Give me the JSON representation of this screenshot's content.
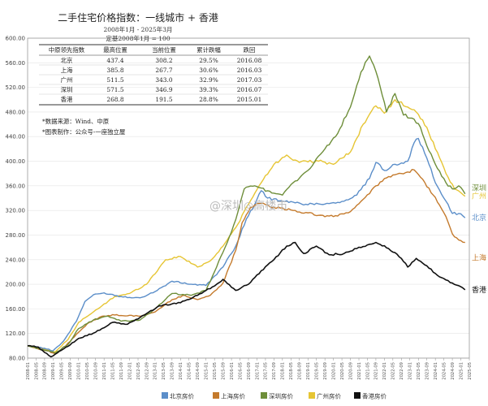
{
  "chart_data": {
    "type": "line",
    "title": "二手住宅价格指数：一线城市 + 香港",
    "subtitle_lines": [
      "2008年1月 - 2025年3月",
      "定基2008年1月 = 100"
    ],
    "ylim": [
      80,
      600
    ],
    "yticks": [
      "80.00",
      "120.00",
      "160.00",
      "200.00",
      "240.00",
      "280.00",
      "320.00",
      "360.00",
      "400.00",
      "440.00",
      "480.00",
      "520.00",
      "560.00",
      "600.00"
    ],
    "x_tick_labels": [
      "2008-01",
      "2008-05",
      "2008-09",
      "2009-01",
      "2009-05",
      "2009-09",
      "2010-01",
      "2010-05",
      "2010-09",
      "2011-01",
      "2011-05",
      "2011-09",
      "2012-01",
      "2012-05",
      "2012-09",
      "2013-01",
      "2013-05",
      "2013-09",
      "2014-01",
      "2014-05",
      "2014-09",
      "2015-01",
      "2015-05",
      "2015-09",
      "2016-01",
      "2016-05",
      "2016-09",
      "2017-01",
      "2017-05",
      "2017-09",
      "2018-01",
      "2018-05",
      "2018-09",
      "2019-01",
      "2019-05",
      "2019-09",
      "2020-01",
      "2020-05",
      "2020-09",
      "2021-01",
      "2021-05",
      "2021-09",
      "2022-01",
      "2022-05",
      "2022-09",
      "2023-01",
      "2023-05",
      "2023-09",
      "2024-01",
      "2024-05",
      "2024-09",
      "2025-01",
      "2025-05"
    ],
    "x_start": "2008-01",
    "x_end": "2025-03",
    "series": [
      {
        "name": "北京房价",
        "end_label": "北京",
        "color": "#5b8ec9",
        "points": [
          [
            "2008-01",
            100
          ],
          [
            "2008-09",
            96
          ],
          [
            "2009-01",
            92
          ],
          [
            "2009-06",
            108
          ],
          [
            "2009-12",
            140
          ],
          [
            "2010-04",
            172
          ],
          [
            "2010-08",
            183
          ],
          [
            "2011-01",
            186
          ],
          [
            "2011-09",
            180
          ],
          [
            "2012-06",
            178
          ],
          [
            "2013-01",
            188
          ],
          [
            "2013-09",
            205
          ],
          [
            "2014-06",
            200
          ],
          [
            "2015-01",
            198
          ],
          [
            "2015-09",
            228
          ],
          [
            "2016-03",
            262
          ],
          [
            "2016-08",
            306
          ],
          [
            "2016-12",
            330
          ],
          [
            "2017-03",
            352
          ],
          [
            "2017-06",
            340
          ],
          [
            "2018-01",
            335
          ],
          [
            "2018-12",
            330
          ],
          [
            "2019-12",
            332
          ],
          [
            "2020-06",
            335
          ],
          [
            "2020-12",
            345
          ],
          [
            "2021-06",
            372
          ],
          [
            "2021-09",
            398
          ],
          [
            "2022-01",
            385
          ],
          [
            "2022-06",
            395
          ],
          [
            "2022-12",
            400
          ],
          [
            "2023-03",
            430
          ],
          [
            "2023-05",
            437
          ],
          [
            "2023-09",
            405
          ],
          [
            "2024-01",
            365
          ],
          [
            "2024-06",
            335
          ],
          [
            "2024-09",
            315
          ],
          [
            "2024-12",
            315
          ],
          [
            "2025-03",
            308
          ]
        ]
      },
      {
        "name": "上海房价",
        "end_label": "上海",
        "color": "#c47a2c",
        "points": [
          [
            "2008-01",
            100
          ],
          [
            "2008-10",
            92
          ],
          [
            "2009-02",
            87
          ],
          [
            "2009-07",
            100
          ],
          [
            "2010-01",
            122
          ],
          [
            "2010-06",
            138
          ],
          [
            "2010-12",
            148
          ],
          [
            "2011-06",
            150
          ],
          [
            "2012-06",
            148
          ],
          [
            "2013-01",
            155
          ],
          [
            "2013-09",
            175
          ],
          [
            "2014-03",
            182
          ],
          [
            "2014-09",
            175
          ],
          [
            "2015-03",
            182
          ],
          [
            "2015-09",
            202
          ],
          [
            "2016-03",
            255
          ],
          [
            "2016-06",
            300
          ],
          [
            "2016-10",
            325
          ],
          [
            "2017-03",
            332
          ],
          [
            "2017-09",
            325
          ],
          [
            "2018-06",
            320
          ],
          [
            "2019-06",
            312
          ],
          [
            "2020-01",
            310
          ],
          [
            "2020-09",
            318
          ],
          [
            "2021-03",
            338
          ],
          [
            "2021-09",
            360
          ],
          [
            "2022-03",
            375
          ],
          [
            "2022-09",
            380
          ],
          [
            "2023-03",
            386
          ],
          [
            "2023-06",
            374
          ],
          [
            "2023-12",
            345
          ],
          [
            "2024-06",
            310
          ],
          [
            "2024-09",
            282
          ],
          [
            "2024-12",
            272
          ],
          [
            "2025-03",
            268
          ]
        ]
      },
      {
        "name": "深圳房价",
        "end_label": "深圳",
        "color": "#6e8e3a",
        "points": [
          [
            "2008-01",
            100
          ],
          [
            "2008-09",
            93
          ],
          [
            "2009-02",
            88
          ],
          [
            "2009-08",
            102
          ],
          [
            "2010-01",
            128
          ],
          [
            "2010-08",
            142
          ],
          [
            "2011-03",
            148
          ],
          [
            "2011-09",
            140
          ],
          [
            "2012-06",
            142
          ],
          [
            "2013-01",
            160
          ],
          [
            "2013-09",
            185
          ],
          [
            "2014-06",
            182
          ],
          [
            "2015-01",
            190
          ],
          [
            "2015-06",
            228
          ],
          [
            "2015-10",
            260
          ],
          [
            "2016-03",
            305
          ],
          [
            "2016-07",
            355
          ],
          [
            "2016-12",
            360
          ],
          [
            "2017-06",
            352
          ],
          [
            "2018-01",
            345
          ],
          [
            "2018-06",
            365
          ],
          [
            "2019-01",
            385
          ],
          [
            "2019-09",
            420
          ],
          [
            "2020-03",
            445
          ],
          [
            "2020-09",
            488
          ],
          [
            "2021-02",
            545
          ],
          [
            "2021-06",
            571
          ],
          [
            "2021-10",
            535
          ],
          [
            "2022-02",
            480
          ],
          [
            "2022-06",
            510
          ],
          [
            "2022-10",
            475
          ],
          [
            "2023-02",
            470
          ],
          [
            "2023-06",
            455
          ],
          [
            "2023-09",
            425
          ],
          [
            "2024-01",
            395
          ],
          [
            "2024-06",
            365
          ],
          [
            "2024-09",
            355
          ],
          [
            "2024-12",
            360
          ],
          [
            "2025-03",
            347
          ]
        ]
      },
      {
        "name": "广州房价",
        "end_label": "广州",
        "color": "#e6c534",
        "points": [
          [
            "2008-01",
            100
          ],
          [
            "2008-09",
            95
          ],
          [
            "2009-02",
            90
          ],
          [
            "2009-08",
            110
          ],
          [
            "2010-01",
            138
          ],
          [
            "2010-06",
            150
          ],
          [
            "2010-12",
            165
          ],
          [
            "2011-06",
            180
          ],
          [
            "2012-01",
            185
          ],
          [
            "2012-09",
            200
          ],
          [
            "2013-06",
            240
          ],
          [
            "2014-01",
            245
          ],
          [
            "2014-09",
            228
          ],
          [
            "2015-03",
            238
          ],
          [
            "2015-09",
            262
          ],
          [
            "2016-03",
            292
          ],
          [
            "2016-09",
            330
          ],
          [
            "2017-03",
            365
          ],
          [
            "2017-09",
            395
          ],
          [
            "2018-03",
            410
          ],
          [
            "2018-09",
            398
          ],
          [
            "2019-06",
            400
          ],
          [
            "2020-01",
            395
          ],
          [
            "2020-09",
            415
          ],
          [
            "2021-03",
            460
          ],
          [
            "2021-09",
            490
          ],
          [
            "2022-01",
            478
          ],
          [
            "2022-06",
            500
          ],
          [
            "2022-12",
            488
          ],
          [
            "2023-04",
            480
          ],
          [
            "2023-09",
            455
          ],
          [
            "2024-01",
            420
          ],
          [
            "2024-06",
            380
          ],
          [
            "2024-10",
            355
          ],
          [
            "2025-03",
            343
          ]
        ]
      },
      {
        "name": "香港房价",
        "end_label": "香港",
        "color": "#111111",
        "points": [
          [
            "2008-01",
            100
          ],
          [
            "2008-06",
            98
          ],
          [
            "2008-12",
            82
          ],
          [
            "2009-06",
            95
          ],
          [
            "2010-01",
            112
          ],
          [
            "2010-09",
            122
          ],
          [
            "2011-05",
            138
          ],
          [
            "2011-12",
            135
          ],
          [
            "2012-08",
            150
          ],
          [
            "2013-03",
            165
          ],
          [
            "2014-01",
            170
          ],
          [
            "2014-09",
            182
          ],
          [
            "2015-06",
            200
          ],
          [
            "2015-09",
            208
          ],
          [
            "2016-03",
            190
          ],
          [
            "2016-09",
            200
          ],
          [
            "2017-03",
            222
          ],
          [
            "2017-09",
            240
          ],
          [
            "2018-03",
            262
          ],
          [
            "2018-07",
            268
          ],
          [
            "2018-11",
            250
          ],
          [
            "2019-05",
            262
          ],
          [
            "2019-11",
            248
          ],
          [
            "2020-06",
            250
          ],
          [
            "2020-12",
            258
          ],
          [
            "2021-06",
            265
          ],
          [
            "2021-09",
            268
          ],
          [
            "2022-03",
            258
          ],
          [
            "2022-09",
            242
          ],
          [
            "2022-12",
            228
          ],
          [
            "2023-04",
            242
          ],
          [
            "2023-09",
            230
          ],
          [
            "2024-03",
            212
          ],
          [
            "2024-09",
            202
          ],
          [
            "2025-01",
            196
          ],
          [
            "2025-03",
            191
          ]
        ]
      }
    ],
    "legend": {
      "placement": "bottom-center"
    }
  },
  "summary_table": {
    "headers": [
      "中原领先指数",
      "最高位置",
      "当前位置",
      "累计跌幅",
      "跌回"
    ],
    "rows": [
      [
        "北京",
        "437.4",
        "308.2",
        "29.5%",
        "2016.08"
      ],
      [
        "上海",
        "385.8",
        "267.7",
        "30.6%",
        "2016.03"
      ],
      [
        "广州",
        "511.5",
        "343.0",
        "32.9%",
        "2017.03"
      ],
      [
        "深圳",
        "571.5",
        "346.9",
        "39.3%",
        "2016.07"
      ],
      [
        "香港",
        "268.8",
        "191.5",
        "28.8%",
        "2015.01"
      ]
    ]
  },
  "notes": [
    "*数据来源：Wind、中原",
    "*图表制作：公众号-一座独立屋"
  ],
  "watermark": "@深圳◎高楼市"
}
